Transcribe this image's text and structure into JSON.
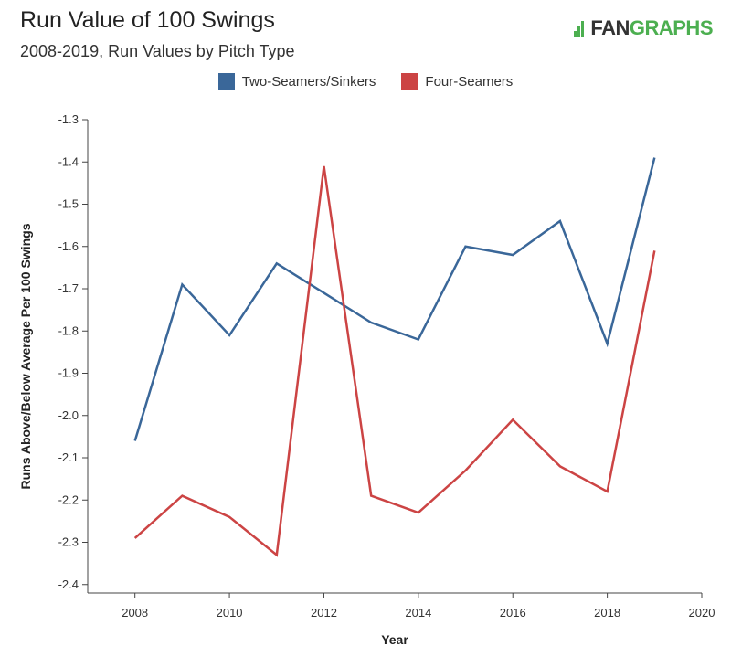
{
  "header": {
    "title": "Run Value of 100 Swings",
    "subtitle": "2008-2019, Run Values by Pitch Type",
    "logo_fan": "FAN",
    "logo_graphs": "GRAPHS"
  },
  "chart_data": {
    "type": "line",
    "title": "Run Value of 100 Swings",
    "subtitle": "2008-2019, Run Values by Pitch Type",
    "xlabel": "Year",
    "ylabel": "Runs Above/Below Average Per 100 Swings",
    "xlim": [
      2007,
      2020
    ],
    "ylim": [
      -2.42,
      -1.3
    ],
    "x_ticks": [
      2008,
      2010,
      2012,
      2014,
      2016,
      2018,
      2020
    ],
    "x_tick_labels": [
      "2008",
      "2010",
      "2012",
      "2014",
      "2016",
      "2018",
      "2020"
    ],
    "y_ticks": [
      -1.3,
      -1.4,
      -1.5,
      -1.6,
      -1.7,
      -1.8,
      -1.9,
      -2.0,
      -2.1,
      -2.2,
      -2.3,
      -2.4
    ],
    "y_tick_labels": [
      "-1.3",
      "-1.4",
      "-1.5",
      "-1.6",
      "-1.7",
      "-1.8",
      "-1.9",
      "-2.0",
      "-2.1",
      "-2.2",
      "-2.3",
      "-2.4"
    ],
    "legend_position": "top-center",
    "grid": false,
    "x": [
      2008,
      2009,
      2010,
      2011,
      2012,
      2013,
      2014,
      2015,
      2016,
      2017,
      2018,
      2019
    ],
    "series": [
      {
        "name": "Two-Seamers/Sinkers",
        "color": "#3a6799",
        "values": [
          -2.06,
          -1.69,
          -1.81,
          -1.64,
          -1.71,
          -1.78,
          -1.82,
          -1.6,
          -1.62,
          -1.54,
          -1.83,
          -1.39
        ]
      },
      {
        "name": "Four-Seamers",
        "color": "#cc4444",
        "values": [
          -2.29,
          -2.19,
          -2.24,
          -2.33,
          -1.41,
          -2.19,
          -2.23,
          -2.13,
          -2.01,
          -2.12,
          -2.18,
          -1.61
        ]
      }
    ]
  }
}
